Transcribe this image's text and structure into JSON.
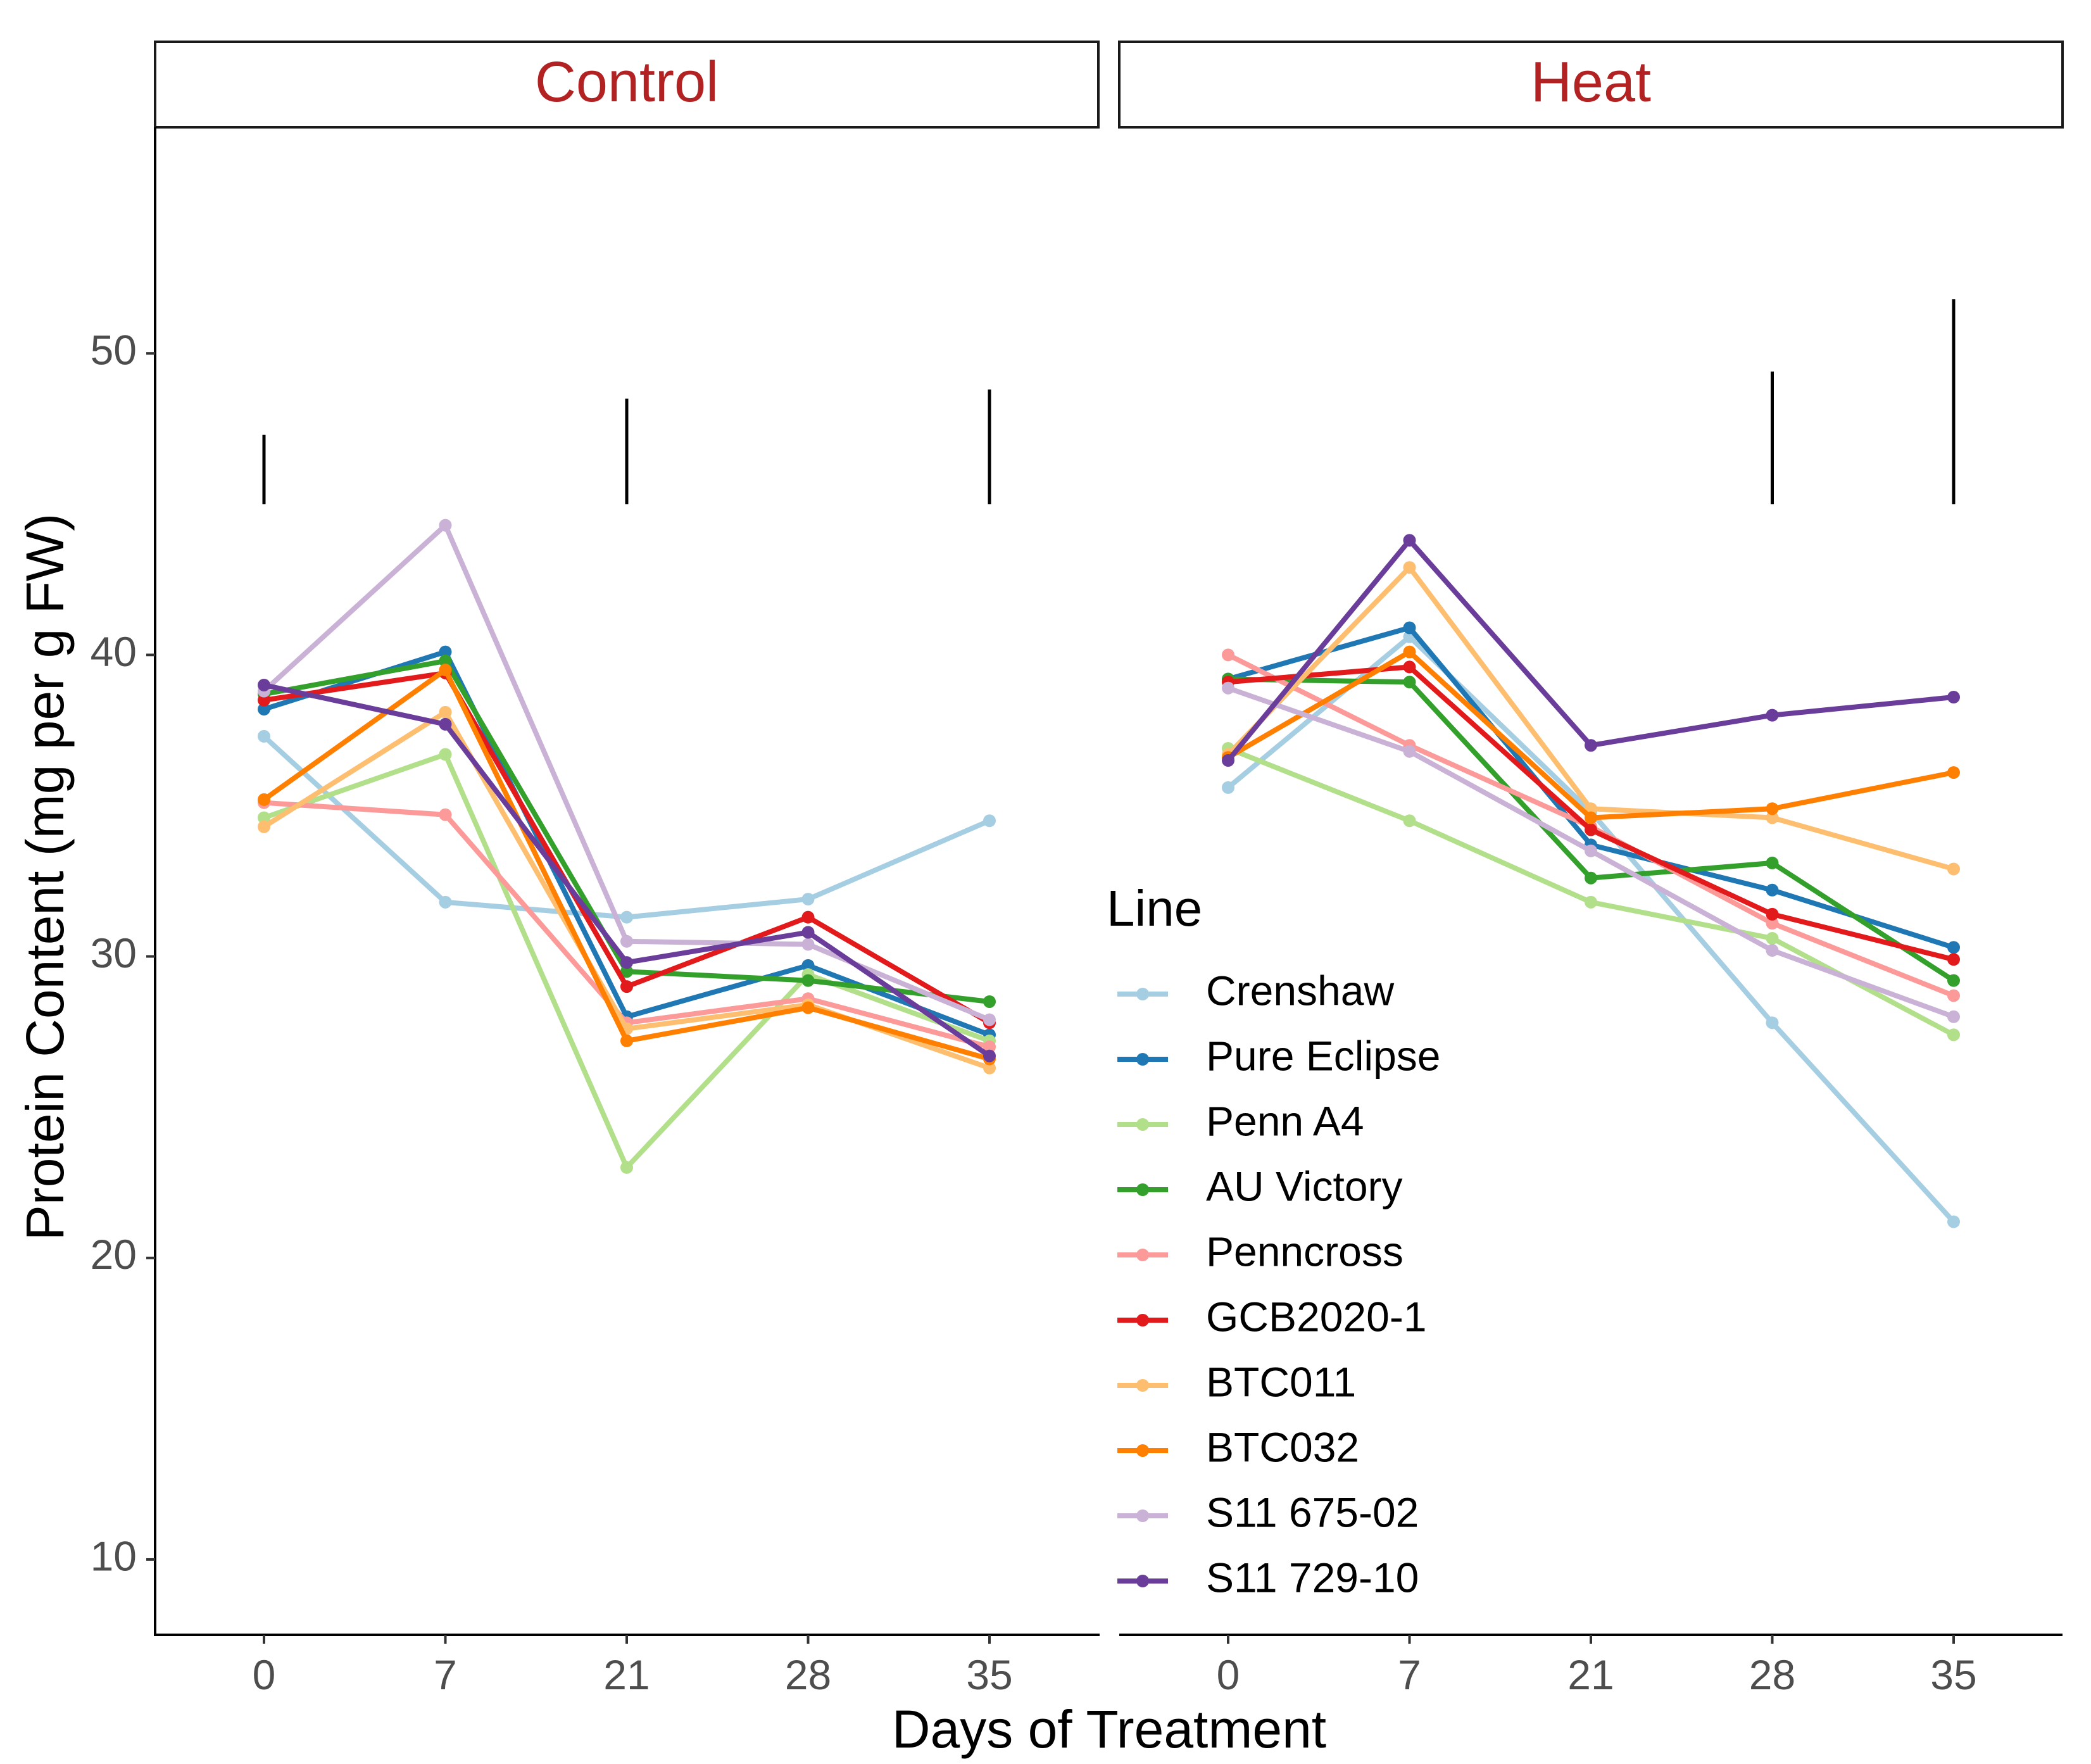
{
  "chart_data": {
    "type": "line",
    "xlabel": "Days of Treatment",
    "ylabel": "Protein Content (mg per g FW)",
    "ylim": [
      7.5,
      57.5
    ],
    "yticks": [
      10,
      20,
      30,
      40,
      50
    ],
    "categories": [
      "0",
      "7",
      "21",
      "28",
      "35"
    ],
    "legend_title": "Line",
    "legend_position": "right-inside-heat-panel",
    "panels": [
      {
        "title": "Control",
        "error_bars": [
          {
            "x": "0",
            "ymin": 45,
            "ymax": 47.3
          },
          {
            "x": "21",
            "ymin": 45,
            "ymax": 48.5
          },
          {
            "x": "35",
            "ymin": 45,
            "ymax": 48.8
          }
        ],
        "series": [
          {
            "name": "Crenshaw",
            "color": "#a6cee3",
            "values": [
              37.3,
              31.8,
              31.3,
              31.9,
              34.5
            ]
          },
          {
            "name": "Pure Eclipse",
            "color": "#1f78b4",
            "values": [
              38.2,
              40.1,
              28.0,
              29.7,
              27.4
            ]
          },
          {
            "name": "Penn A4",
            "color": "#b2df8a",
            "values": [
              34.6,
              36.7,
              23.0,
              29.4,
              27.2
            ]
          },
          {
            "name": "AU Victory",
            "color": "#33a02c",
            "values": [
              38.7,
              39.8,
              29.5,
              29.2,
              28.5
            ]
          },
          {
            "name": "Penncross",
            "color": "#fb9a99",
            "values": [
              35.1,
              34.7,
              27.8,
              28.6,
              27.0
            ]
          },
          {
            "name": "GCB2020-1",
            "color": "#e31a1c",
            "values": [
              38.5,
              39.4,
              29.0,
              31.3,
              27.8
            ]
          },
          {
            "name": "BTC011",
            "color": "#fdbf6f",
            "values": [
              34.3,
              38.1,
              27.6,
              28.4,
              26.3
            ]
          },
          {
            "name": "BTC032",
            "color": "#ff7f00",
            "values": [
              35.2,
              39.5,
              27.2,
              28.3,
              26.6
            ]
          },
          {
            "name": "S11 675-02",
            "color": "#cab2d6",
            "values": [
              38.8,
              44.3,
              30.5,
              30.4,
              27.9
            ]
          },
          {
            "name": "S11 729-10",
            "color": "#6a3d9a",
            "values": [
              39.0,
              37.7,
              29.8,
              30.8,
              26.7
            ]
          }
        ]
      },
      {
        "title": "Heat",
        "error_bars": [
          {
            "x": "28",
            "ymin": 45,
            "ymax": 49.4
          },
          {
            "x": "35",
            "ymin": 45,
            "ymax": 51.8
          }
        ],
        "series": [
          {
            "name": "Crenshaw",
            "color": "#a6cee3",
            "values": [
              35.6,
              40.6,
              34.8,
              27.8,
              21.2
            ]
          },
          {
            "name": "Pure Eclipse",
            "color": "#1f78b4",
            "values": [
              39.2,
              40.9,
              33.7,
              32.2,
              30.3
            ]
          },
          {
            "name": "Penn A4",
            "color": "#b2df8a",
            "values": [
              36.9,
              34.5,
              31.8,
              30.6,
              27.4
            ]
          },
          {
            "name": "AU Victory",
            "color": "#33a02c",
            "values": [
              39.2,
              39.1,
              32.6,
              33.1,
              29.2
            ]
          },
          {
            "name": "Penncross",
            "color": "#fb9a99",
            "values": [
              40.0,
              37.0,
              34.3,
              31.1,
              28.7
            ]
          },
          {
            "name": "GCB2020-1",
            "color": "#e31a1c",
            "values": [
              39.1,
              39.6,
              34.2,
              31.4,
              29.9
            ]
          },
          {
            "name": "BTC011",
            "color": "#fdbf6f",
            "values": [
              36.7,
              42.9,
              34.9,
              34.6,
              32.9
            ]
          },
          {
            "name": "BTC032",
            "color": "#ff7f00",
            "values": [
              36.6,
              40.1,
              34.6,
              34.9,
              36.1
            ]
          },
          {
            "name": "S11 675-02",
            "color": "#cab2d6",
            "values": [
              38.9,
              36.8,
              33.5,
              30.2,
              28.0
            ]
          },
          {
            "name": "S11 729-10",
            "color": "#6a3d9a",
            "values": [
              36.5,
              43.8,
              37.0,
              38.0,
              38.6
            ]
          }
        ]
      }
    ]
  }
}
